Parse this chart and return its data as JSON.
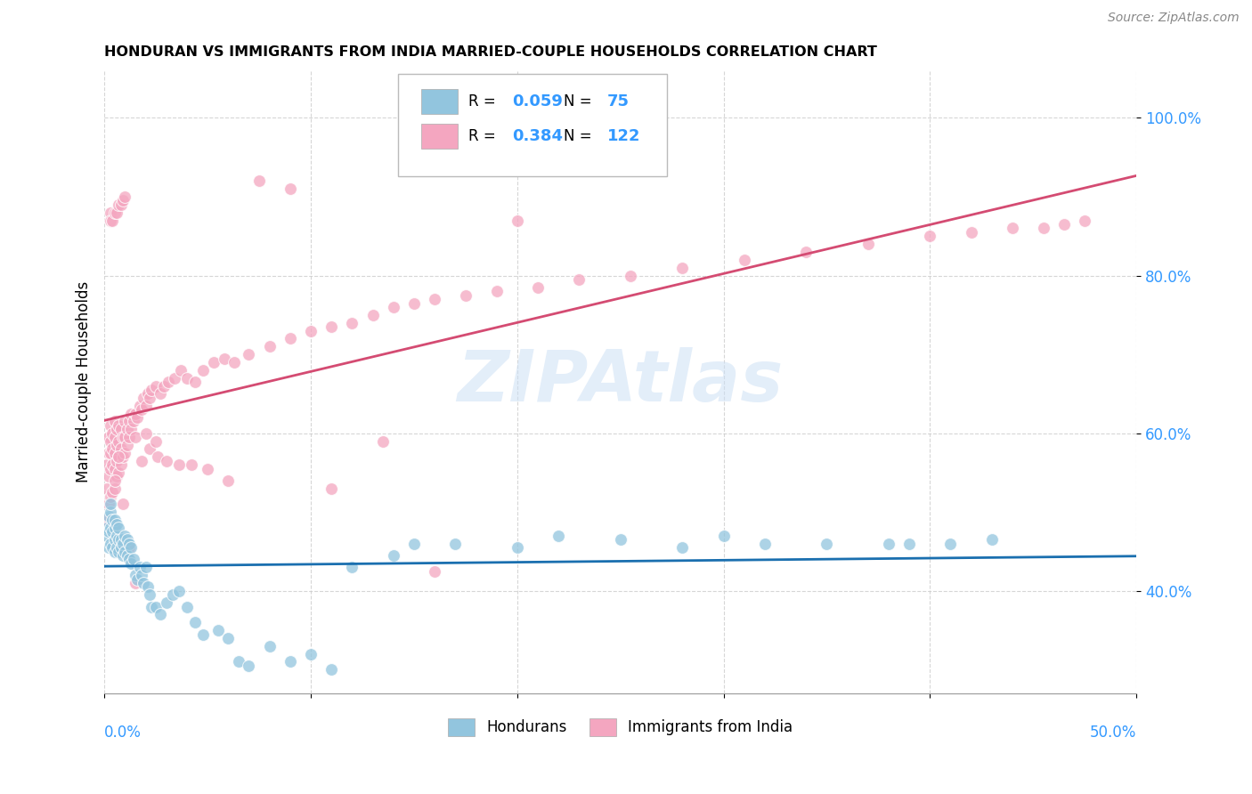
{
  "title": "HONDURAN VS IMMIGRANTS FROM INDIA MARRIED-COUPLE HOUSEHOLDS CORRELATION CHART",
  "source": "Source: ZipAtlas.com",
  "ylabel": "Married-couple Households",
  "y_ticks": [
    0.4,
    0.6,
    0.8,
    1.0
  ],
  "y_tick_labels": [
    "40.0%",
    "60.0%",
    "80.0%",
    "100.0%"
  ],
  "x_range": [
    0,
    0.5
  ],
  "y_range": [
    0.27,
    1.06
  ],
  "watermark": "ZIPAtlas",
  "legend1_label": "Hondurans",
  "legend2_label": "Immigrants from India",
  "R1": 0.059,
  "N1": 75,
  "R2": 0.384,
  "N2": 122,
  "color1": "#92c5de",
  "color2": "#f4a6c0",
  "regression1_color": "#1a6faf",
  "regression2_color": "#d44b72",
  "background_color": "#ffffff",
  "grid_color": "#cccccc",
  "hondurans_x": [
    0.001,
    0.001,
    0.002,
    0.002,
    0.002,
    0.003,
    0.003,
    0.003,
    0.003,
    0.004,
    0.004,
    0.004,
    0.005,
    0.005,
    0.005,
    0.005,
    0.006,
    0.006,
    0.006,
    0.007,
    0.007,
    0.007,
    0.008,
    0.008,
    0.009,
    0.009,
    0.01,
    0.01,
    0.011,
    0.011,
    0.012,
    0.012,
    0.013,
    0.013,
    0.014,
    0.015,
    0.016,
    0.017,
    0.018,
    0.019,
    0.02,
    0.021,
    0.022,
    0.023,
    0.025,
    0.027,
    0.03,
    0.033,
    0.036,
    0.04,
    0.044,
    0.048,
    0.055,
    0.06,
    0.065,
    0.07,
    0.08,
    0.09,
    0.1,
    0.11,
    0.12,
    0.14,
    0.15,
    0.17,
    0.2,
    0.22,
    0.25,
    0.28,
    0.3,
    0.32,
    0.35,
    0.38,
    0.39,
    0.41,
    0.43
  ],
  "hondurans_y": [
    0.47,
    0.48,
    0.455,
    0.475,
    0.495,
    0.46,
    0.48,
    0.5,
    0.51,
    0.455,
    0.475,
    0.49,
    0.45,
    0.465,
    0.48,
    0.49,
    0.455,
    0.47,
    0.485,
    0.45,
    0.465,
    0.48,
    0.455,
    0.465,
    0.445,
    0.46,
    0.45,
    0.47,
    0.445,
    0.465,
    0.44,
    0.46,
    0.435,
    0.455,
    0.44,
    0.42,
    0.415,
    0.43,
    0.42,
    0.41,
    0.43,
    0.405,
    0.395,
    0.38,
    0.38,
    0.37,
    0.385,
    0.395,
    0.4,
    0.38,
    0.36,
    0.345,
    0.35,
    0.34,
    0.31,
    0.305,
    0.33,
    0.31,
    0.32,
    0.3,
    0.43,
    0.445,
    0.46,
    0.46,
    0.455,
    0.47,
    0.465,
    0.455,
    0.47,
    0.46,
    0.46,
    0.46,
    0.46,
    0.46,
    0.465
  ],
  "india_x": [
    0.001,
    0.001,
    0.001,
    0.002,
    0.002,
    0.002,
    0.002,
    0.003,
    0.003,
    0.003,
    0.003,
    0.003,
    0.004,
    0.004,
    0.004,
    0.004,
    0.005,
    0.005,
    0.005,
    0.005,
    0.005,
    0.006,
    0.006,
    0.006,
    0.006,
    0.007,
    0.007,
    0.007,
    0.007,
    0.008,
    0.008,
    0.008,
    0.009,
    0.009,
    0.01,
    0.01,
    0.01,
    0.011,
    0.011,
    0.012,
    0.012,
    0.013,
    0.013,
    0.014,
    0.015,
    0.016,
    0.017,
    0.018,
    0.019,
    0.02,
    0.021,
    0.022,
    0.023,
    0.025,
    0.027,
    0.029,
    0.031,
    0.034,
    0.037,
    0.04,
    0.044,
    0.048,
    0.053,
    0.058,
    0.063,
    0.07,
    0.08,
    0.09,
    0.1,
    0.11,
    0.12,
    0.13,
    0.14,
    0.15,
    0.16,
    0.175,
    0.19,
    0.21,
    0.23,
    0.255,
    0.28,
    0.31,
    0.34,
    0.37,
    0.4,
    0.42,
    0.44,
    0.455,
    0.465,
    0.475,
    0.2,
    0.003,
    0.003,
    0.004,
    0.005,
    0.006,
    0.007,
    0.008,
    0.009,
    0.01,
    0.012,
    0.015,
    0.018,
    0.022,
    0.026,
    0.03,
    0.036,
    0.042,
    0.05,
    0.06,
    0.075,
    0.09,
    0.11,
    0.135,
    0.16,
    0.005,
    0.007,
    0.009,
    0.012,
    0.015,
    0.02,
    0.025
  ],
  "india_y": [
    0.49,
    0.53,
    0.56,
    0.51,
    0.545,
    0.575,
    0.595,
    0.52,
    0.555,
    0.575,
    0.59,
    0.61,
    0.525,
    0.56,
    0.58,
    0.6,
    0.53,
    0.555,
    0.575,
    0.595,
    0.615,
    0.545,
    0.565,
    0.585,
    0.605,
    0.55,
    0.57,
    0.59,
    0.61,
    0.56,
    0.58,
    0.605,
    0.57,
    0.595,
    0.575,
    0.595,
    0.615,
    0.585,
    0.605,
    0.595,
    0.615,
    0.605,
    0.625,
    0.615,
    0.625,
    0.62,
    0.635,
    0.63,
    0.645,
    0.635,
    0.65,
    0.645,
    0.655,
    0.66,
    0.65,
    0.66,
    0.665,
    0.67,
    0.68,
    0.67,
    0.665,
    0.68,
    0.69,
    0.695,
    0.69,
    0.7,
    0.71,
    0.72,
    0.73,
    0.735,
    0.74,
    0.75,
    0.76,
    0.765,
    0.77,
    0.775,
    0.78,
    0.785,
    0.795,
    0.8,
    0.81,
    0.82,
    0.83,
    0.84,
    0.85,
    0.855,
    0.86,
    0.86,
    0.865,
    0.87,
    0.87,
    0.88,
    0.87,
    0.87,
    0.88,
    0.88,
    0.89,
    0.89,
    0.895,
    0.9,
    0.455,
    0.595,
    0.565,
    0.58,
    0.57,
    0.565,
    0.56,
    0.56,
    0.555,
    0.54,
    0.92,
    0.91,
    0.53,
    0.59,
    0.425,
    0.54,
    0.57,
    0.51,
    0.44,
    0.41,
    0.6,
    0.59
  ]
}
